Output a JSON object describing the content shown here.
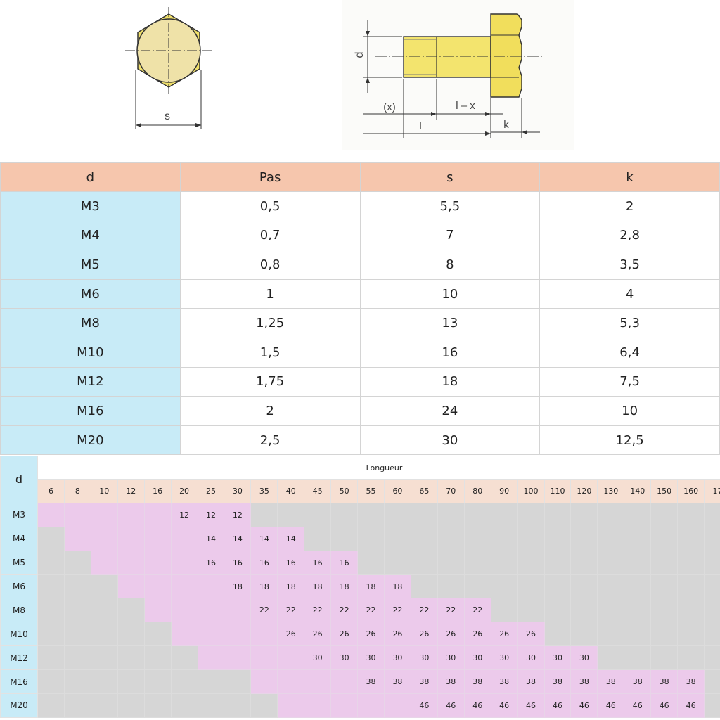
{
  "drawing": {
    "top_view_label": "s",
    "side_view_labels": {
      "diameter": "d",
      "thread": "(x)",
      "shank": "l – x",
      "length": "l",
      "head": "k"
    }
  },
  "dimensions_table": {
    "headers": [
      "d",
      "Pas",
      "s",
      "k"
    ],
    "rows": [
      {
        "d": "M3",
        "pas": "0,5",
        "s": "5,5",
        "k": "2"
      },
      {
        "d": "M4",
        "pas": "0,7",
        "s": "7",
        "k": "2,8"
      },
      {
        "d": "M5",
        "pas": "0,8",
        "s": "8",
        "k": "3,5"
      },
      {
        "d": "M6",
        "pas": "1",
        "s": "10",
        "k": "4"
      },
      {
        "d": "M8",
        "pas": "1,25",
        "s": "13",
        "k": "5,3"
      },
      {
        "d": "M10",
        "pas": "1,5",
        "s": "16",
        "k": "6,4"
      },
      {
        "d": "M12",
        "pas": "1,75",
        "s": "18",
        "k": "7,5"
      },
      {
        "d": "M16",
        "pas": "2",
        "s": "24",
        "k": "10"
      },
      {
        "d": "M20",
        "pas": "2,5",
        "s": "30",
        "k": "12,5"
      }
    ]
  },
  "length_table": {
    "d_header": "d",
    "longueur_header": "Longueur",
    "lengths": [
      "6",
      "8",
      "10",
      "12",
      "16",
      "20",
      "25",
      "30",
      "35",
      "40",
      "45",
      "50",
      "55",
      "60",
      "65",
      "70",
      "80",
      "90",
      "100",
      "110",
      "120",
      "130",
      "140",
      "150",
      "160",
      "17"
    ],
    "rows": [
      {
        "d": "M3",
        "start": 0,
        "end": 7,
        "thread_from": 5,
        "thread": "12"
      },
      {
        "d": "M4",
        "start": 1,
        "end": 9,
        "thread_from": 6,
        "thread": "14"
      },
      {
        "d": "M5",
        "start": 2,
        "end": 11,
        "thread_from": 6,
        "thread": "16"
      },
      {
        "d": "M6",
        "start": 3,
        "end": 13,
        "thread_from": 7,
        "thread": "18"
      },
      {
        "d": "M8",
        "start": 4,
        "end": 16,
        "thread_from": 8,
        "thread": "22"
      },
      {
        "d": "M10",
        "start": 5,
        "end": 18,
        "thread_from": 9,
        "thread": "26"
      },
      {
        "d": "M12",
        "start": 6,
        "end": 20,
        "thread_from": 10,
        "thread": "30"
      },
      {
        "d": "M16",
        "start": 8,
        "end": 24,
        "thread_from": 12,
        "thread": "38"
      },
      {
        "d": "M20",
        "start": 9,
        "end": 24,
        "thread_from": 14,
        "thread": "46"
      }
    ]
  }
}
